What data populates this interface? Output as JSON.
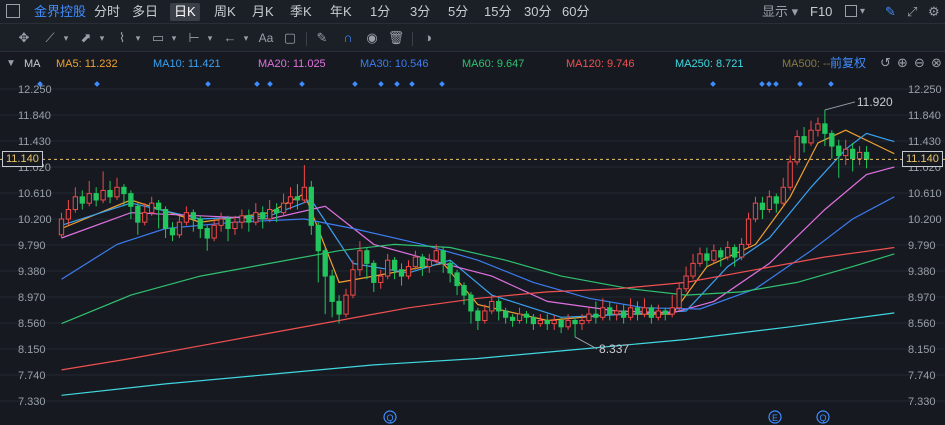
{
  "header": {
    "stock_name": "金界控股",
    "periods": [
      "分时",
      "多日",
      "日K",
      "周K",
      "月K",
      "季K",
      "年K",
      "1分",
      "3分",
      "5分",
      "15分",
      "30分",
      "60分"
    ],
    "active_period": "日K",
    "display_label": "显示",
    "f10_label": "F10"
  },
  "toolbar": {
    "text_tool_label": "Aa",
    "icons": [
      "crosshair-icon",
      "line-tool-icon",
      "ray-tool-icon",
      "wave-tool-icon",
      "rect-tool-icon",
      "range-tool-icon",
      "arrow-tool-icon",
      "text-tool-icon",
      "comment-icon",
      "pen-icon",
      "magnet-icon",
      "eye-icon",
      "trash-icon",
      "toggle-icon"
    ]
  },
  "indicator_bar": {
    "name": "MA",
    "ma": [
      {
        "label": "MA5: 11.232",
        "color": "#f0a030"
      },
      {
        "label": "MA10: 11.421",
        "color": "#3aa0f0"
      },
      {
        "label": "MA20: 11.025",
        "color": "#e070e0"
      },
      {
        "label": "MA30: 10.546",
        "color": "#3c7cf0"
      },
      {
        "label": "MA60: 9.647",
        "color": "#30c070"
      },
      {
        "label": "MA120: 9.746",
        "color": "#f05050"
      },
      {
        "label": "MA250: 8.721",
        "color": "#40d8e0"
      },
      {
        "label": "MA500: --",
        "color": "#8a7a40"
      }
    ],
    "adjust_label": "前复权"
  },
  "chart_data": {
    "type": "candlestick",
    "y_ticks": [
      "12.250",
      "11.840",
      "11.430",
      "11.020",
      "10.610",
      "10.200",
      "9.790",
      "9.380",
      "8.970",
      "8.560",
      "8.150",
      "7.740",
      "7.330"
    ],
    "ylim": [
      7.33,
      12.25
    ],
    "current_price": "11.140",
    "high_annotation": "11.920",
    "low_annotation": "8.337",
    "candles": [
      [
        9.95,
        10.2,
        9.9,
        10.3
      ],
      [
        10.2,
        10.35,
        10.1,
        10.5
      ],
      [
        10.35,
        10.55,
        10.3,
        10.7
      ],
      [
        10.55,
        10.45,
        10.35,
        10.65
      ],
      [
        10.45,
        10.6,
        10.4,
        10.8
      ],
      [
        10.6,
        10.5,
        10.4,
        10.7
      ],
      [
        10.5,
        10.65,
        10.45,
        10.95
      ],
      [
        10.65,
        10.55,
        10.45,
        10.8
      ],
      [
        10.55,
        10.7,
        10.5,
        10.85
      ],
      [
        10.7,
        10.6,
        10.4,
        10.75
      ],
      [
        10.6,
        10.4,
        10.2,
        10.65
      ],
      [
        10.4,
        10.15,
        9.95,
        10.45
      ],
      [
        10.15,
        10.3,
        10.1,
        10.45
      ],
      [
        10.3,
        10.45,
        10.25,
        10.55
      ],
      [
        10.45,
        10.35,
        10.05,
        10.5
      ],
      [
        10.35,
        10.05,
        9.9,
        10.4
      ],
      [
        10.05,
        9.95,
        9.85,
        10.15
      ],
      [
        9.95,
        10.15,
        9.9,
        10.25
      ],
      [
        10.15,
        10.3,
        10.1,
        10.4
      ],
      [
        10.3,
        10.2,
        10.0,
        10.35
      ],
      [
        10.2,
        10.05,
        9.9,
        10.25
      ],
      [
        10.05,
        9.9,
        9.7,
        10.1
      ],
      [
        9.9,
        10.1,
        9.85,
        10.2
      ],
      [
        10.1,
        10.2,
        10.0,
        10.3
      ],
      [
        10.2,
        10.05,
        9.85,
        10.25
      ],
      [
        10.05,
        10.15,
        9.95,
        10.25
      ],
      [
        10.15,
        10.25,
        10.05,
        10.35
      ],
      [
        10.25,
        10.15,
        10.0,
        10.35
      ],
      [
        10.15,
        10.3,
        10.1,
        10.45
      ],
      [
        10.3,
        10.2,
        10.05,
        10.4
      ],
      [
        10.2,
        10.35,
        10.15,
        10.5
      ],
      [
        10.35,
        10.3,
        10.15,
        10.45
      ],
      [
        10.3,
        10.45,
        10.25,
        10.6
      ],
      [
        10.45,
        10.55,
        10.35,
        10.7
      ],
      [
        10.55,
        10.5,
        10.35,
        10.75
      ],
      [
        10.5,
        10.7,
        10.45,
        11.05
      ],
      [
        10.7,
        10.1,
        9.95,
        10.8
      ],
      [
        10.1,
        9.7,
        9.2,
        10.15
      ],
      [
        9.7,
        9.3,
        8.7,
        9.75
      ],
      [
        9.3,
        8.9,
        8.65,
        9.4
      ],
      [
        8.9,
        8.7,
        8.55,
        9.0
      ],
      [
        8.7,
        9.0,
        8.65,
        9.1
      ],
      [
        9.0,
        9.4,
        8.95,
        9.55
      ],
      [
        9.4,
        9.7,
        9.3,
        9.85
      ],
      [
        9.7,
        9.5,
        9.25,
        9.75
      ],
      [
        9.5,
        9.2,
        9.05,
        9.55
      ],
      [
        9.2,
        9.3,
        9.1,
        9.4
      ],
      [
        9.3,
        9.55,
        9.25,
        9.65
      ],
      [
        9.55,
        9.4,
        9.25,
        9.6
      ],
      [
        9.4,
        9.3,
        9.15,
        9.5
      ],
      [
        9.3,
        9.45,
        9.25,
        9.55
      ],
      [
        9.45,
        9.6,
        9.4,
        9.7
      ],
      [
        9.6,
        9.45,
        9.3,
        9.65
      ],
      [
        9.45,
        9.55,
        9.35,
        9.65
      ],
      [
        9.55,
        9.7,
        9.5,
        9.8
      ],
      [
        9.7,
        9.5,
        9.35,
        9.75
      ],
      [
        9.5,
        9.35,
        9.2,
        9.55
      ],
      [
        9.35,
        9.15,
        9.0,
        9.4
      ],
      [
        9.15,
        9.0,
        8.85,
        9.2
      ],
      [
        9.0,
        8.75,
        8.55,
        9.05
      ],
      [
        8.75,
        8.6,
        8.45,
        8.8
      ],
      [
        8.6,
        8.75,
        8.55,
        8.85
      ],
      [
        8.75,
        8.9,
        8.7,
        9.0
      ],
      [
        8.9,
        8.75,
        8.6,
        8.95
      ],
      [
        8.75,
        8.65,
        8.55,
        8.8
      ],
      [
        8.65,
        8.6,
        8.5,
        8.7
      ],
      [
        8.6,
        8.7,
        8.55,
        8.8
      ],
      [
        8.7,
        8.65,
        8.55,
        8.75
      ],
      [
        8.65,
        8.55,
        8.45,
        8.7
      ],
      [
        8.55,
        8.6,
        8.5,
        8.7
      ],
      [
        8.6,
        8.55,
        8.45,
        8.7
      ],
      [
        8.55,
        8.6,
        8.45,
        8.68
      ],
      [
        8.6,
        8.5,
        8.4,
        8.65
      ],
      [
        8.5,
        8.6,
        8.45,
        8.7
      ],
      [
        8.6,
        8.55,
        8.34,
        8.65
      ],
      [
        8.55,
        8.6,
        8.45,
        8.7
      ],
      [
        8.6,
        8.7,
        8.55,
        8.8
      ],
      [
        8.7,
        8.65,
        8.55,
        8.9
      ],
      [
        8.65,
        8.8,
        8.6,
        8.95
      ],
      [
        8.8,
        8.7,
        8.6,
        8.9
      ],
      [
        8.7,
        8.75,
        8.6,
        8.85
      ],
      [
        8.75,
        8.65,
        8.55,
        8.85
      ],
      [
        8.65,
        8.8,
        8.6,
        8.95
      ],
      [
        8.8,
        8.7,
        8.6,
        8.9
      ],
      [
        8.7,
        8.8,
        8.65,
        8.95
      ],
      [
        8.8,
        8.65,
        8.55,
        8.85
      ],
      [
        8.65,
        8.75,
        8.6,
        8.85
      ],
      [
        8.75,
        8.7,
        8.6,
        8.8
      ],
      [
        8.7,
        8.8,
        8.65,
        9.0
      ],
      [
        8.8,
        9.1,
        8.75,
        9.2
      ],
      [
        9.1,
        9.3,
        9.05,
        9.45
      ],
      [
        9.3,
        9.5,
        9.25,
        9.65
      ],
      [
        9.5,
        9.65,
        9.45,
        9.75
      ],
      [
        9.65,
        9.55,
        9.45,
        9.75
      ],
      [
        9.55,
        9.7,
        9.5,
        9.8
      ],
      [
        9.7,
        9.6,
        9.45,
        9.75
      ],
      [
        9.6,
        9.75,
        9.55,
        9.85
      ],
      [
        9.75,
        9.6,
        9.45,
        9.8
      ],
      [
        9.6,
        9.8,
        9.55,
        9.9
      ],
      [
        9.8,
        10.2,
        9.75,
        10.3
      ],
      [
        10.2,
        10.45,
        10.15,
        10.55
      ],
      [
        10.45,
        10.35,
        10.2,
        10.55
      ],
      [
        10.35,
        10.55,
        10.3,
        10.65
      ],
      [
        10.55,
        10.45,
        10.3,
        10.6
      ],
      [
        10.45,
        10.7,
        10.4,
        10.85
      ],
      [
        10.7,
        11.1,
        10.65,
        11.2
      ],
      [
        11.1,
        11.5,
        11.05,
        11.6
      ],
      [
        11.5,
        11.4,
        11.25,
        11.65
      ],
      [
        11.4,
        11.6,
        11.35,
        11.75
      ],
      [
        11.6,
        11.7,
        11.5,
        11.8
      ],
      [
        11.7,
        11.55,
        11.35,
        11.92
      ],
      [
        11.55,
        11.35,
        11.15,
        11.6
      ],
      [
        11.35,
        11.2,
        10.85,
        11.45
      ],
      [
        11.2,
        11.3,
        11.05,
        11.45
      ],
      [
        11.3,
        11.15,
        10.95,
        11.4
      ],
      [
        11.15,
        11.25,
        11.05,
        11.35
      ],
      [
        11.25,
        11.14,
        11.0,
        11.35
      ]
    ],
    "ma_lines": {
      "MA5": [
        [
          0,
          10.05
        ],
        [
          10,
          10.5
        ],
        [
          20,
          10.15
        ],
        [
          30,
          10.3
        ],
        [
          35,
          10.6
        ],
        [
          40,
          9.2
        ],
        [
          45,
          9.3
        ],
        [
          55,
          9.5
        ],
        [
          60,
          8.85
        ],
        [
          70,
          8.6
        ],
        [
          80,
          8.7
        ],
        [
          88,
          8.7
        ],
        [
          93,
          9.45
        ],
        [
          100,
          9.8
        ],
        [
          105,
          10.55
        ],
        [
          109,
          11.4
        ],
        [
          113,
          11.6
        ],
        [
          120,
          11.23
        ]
      ],
      "MA10": [
        [
          0,
          10.1
        ],
        [
          10,
          10.45
        ],
        [
          20,
          10.2
        ],
        [
          30,
          10.25
        ],
        [
          36,
          10.5
        ],
        [
          42,
          9.5
        ],
        [
          50,
          9.35
        ],
        [
          56,
          9.55
        ],
        [
          62,
          9.0
        ],
        [
          72,
          8.65
        ],
        [
          82,
          8.7
        ],
        [
          90,
          8.75
        ],
        [
          96,
          9.45
        ],
        [
          102,
          9.9
        ],
        [
          108,
          10.7
        ],
        [
          113,
          11.3
        ],
        [
          116,
          11.55
        ],
        [
          120,
          11.42
        ]
      ],
      "MA20": [
        [
          0,
          9.9
        ],
        [
          10,
          10.3
        ],
        [
          20,
          10.25
        ],
        [
          30,
          10.2
        ],
        [
          38,
          10.4
        ],
        [
          45,
          9.8
        ],
        [
          55,
          9.5
        ],
        [
          62,
          9.3
        ],
        [
          70,
          8.9
        ],
        [
          80,
          8.75
        ],
        [
          88,
          8.72
        ],
        [
          94,
          8.9
        ],
        [
          102,
          9.5
        ],
        [
          110,
          10.35
        ],
        [
          116,
          10.9
        ],
        [
          120,
          11.02
        ]
      ],
      "MA30": [
        [
          0,
          9.25
        ],
        [
          8,
          9.8
        ],
        [
          15,
          10.05
        ],
        [
          25,
          10.15
        ],
        [
          35,
          10.2
        ],
        [
          42,
          10.05
        ],
        [
          52,
          9.8
        ],
        [
          60,
          9.55
        ],
        [
          68,
          9.2
        ],
        [
          76,
          8.95
        ],
        [
          84,
          8.8
        ],
        [
          92,
          8.78
        ],
        [
          100,
          9.1
        ],
        [
          108,
          9.7
        ],
        [
          114,
          10.2
        ],
        [
          120,
          10.55
        ]
      ],
      "MA60": [
        [
          0,
          8.55
        ],
        [
          10,
          9.0
        ],
        [
          20,
          9.3
        ],
        [
          30,
          9.5
        ],
        [
          40,
          9.7
        ],
        [
          48,
          9.8
        ],
        [
          56,
          9.75
        ],
        [
          64,
          9.55
        ],
        [
          72,
          9.3
        ],
        [
          82,
          9.1
        ],
        [
          90,
          9.0
        ],
        [
          98,
          9.05
        ],
        [
          106,
          9.2
        ],
        [
          114,
          9.45
        ],
        [
          120,
          9.65
        ]
      ],
      "MA120": [
        [
          0,
          7.82
        ],
        [
          10,
          8.0
        ],
        [
          20,
          8.2
        ],
        [
          30,
          8.4
        ],
        [
          40,
          8.6
        ],
        [
          50,
          8.8
        ],
        [
          60,
          8.95
        ],
        [
          70,
          9.05
        ],
        [
          80,
          9.1
        ],
        [
          90,
          9.2
        ],
        [
          100,
          9.4
        ],
        [
          110,
          9.6
        ],
        [
          120,
          9.75
        ]
      ],
      "MA250": [
        [
          0,
          7.42
        ],
        [
          15,
          7.6
        ],
        [
          30,
          7.75
        ],
        [
          45,
          7.9
        ],
        [
          60,
          8.0
        ],
        [
          75,
          8.15
        ],
        [
          90,
          8.3
        ],
        [
          105,
          8.5
        ],
        [
          120,
          8.72
        ]
      ]
    },
    "markers": [
      "Q",
      "E",
      "Q"
    ]
  }
}
